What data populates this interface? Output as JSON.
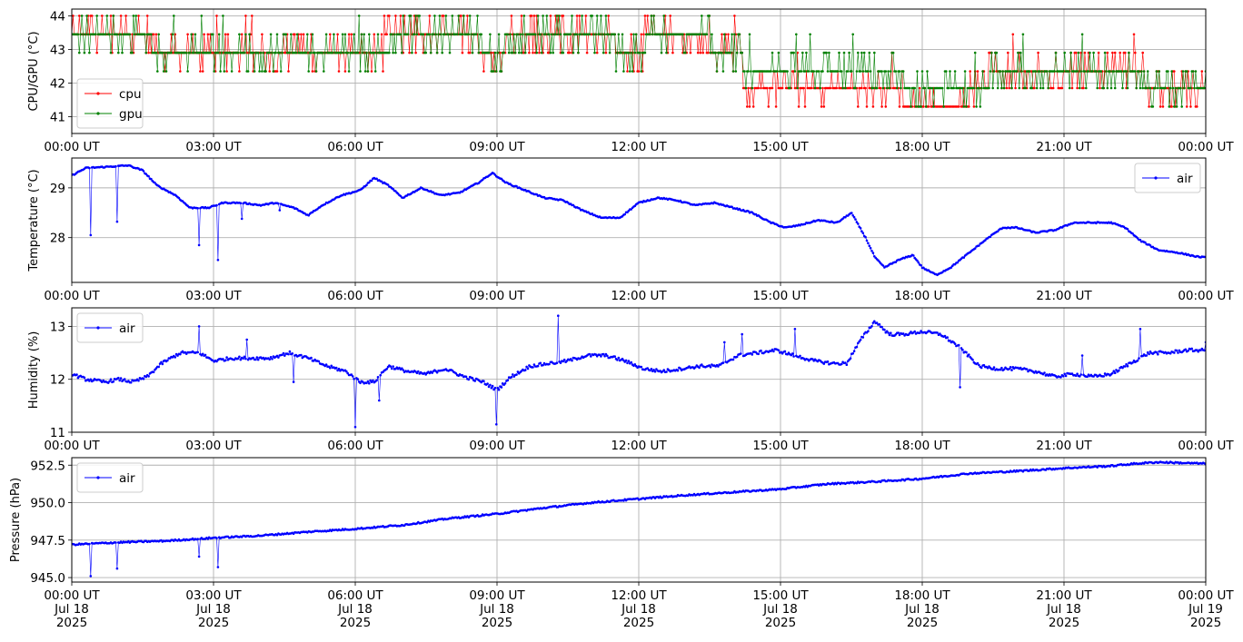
{
  "colors": {
    "cpu": "#ff0000",
    "gpu": "#008000",
    "air": "#0000ff",
    "grid": "#b0b0b0"
  },
  "chart_data": [
    {
      "type": "line",
      "id": "cpu_gpu",
      "ylabel": "CPU/GPU (°C)",
      "xlim": [
        0,
        24
      ],
      "ylim": [
        40.5,
        44.2
      ],
      "yticks": [
        41,
        42,
        43,
        44
      ],
      "ytick_labels": [
        "41",
        "42",
        "43",
        "44"
      ],
      "xtick_labels": [
        "00:00 UT",
        "03:00 UT",
        "06:00 UT",
        "09:00 UT",
        "12:00 UT",
        "15:00 UT",
        "18:00 UT",
        "21:00 UT",
        "00:00 UT"
      ],
      "grid": true,
      "legend": "bottom-left",
      "series": [
        {
          "name": "cpu",
          "color": "#ff0000",
          "levels": [
            41.3,
            41.85,
            42.35,
            42.9,
            43.45,
            44.0
          ],
          "x": [
            0,
            1.6,
            1.7,
            5.8,
            6.6,
            8.6,
            9.2,
            11.5,
            12.1,
            13.5,
            14.2,
            16.8,
            17.6,
            19.0,
            19.4,
            22.3,
            22.7,
            24
          ],
          "y": [
            43.45,
            43.45,
            42.9,
            42.9,
            43.45,
            42.9,
            43.45,
            42.9,
            43.45,
            42.9,
            41.85,
            41.85,
            41.3,
            41.85,
            42.35,
            42.35,
            41.85,
            41.85
          ]
        },
        {
          "name": "gpu",
          "color": "#008000",
          "levels": [
            41.3,
            41.85,
            42.35,
            42.9,
            43.45,
            44.0
          ],
          "x": [
            0,
            1.6,
            1.7,
            5.8,
            6.6,
            8.6,
            9.2,
            11.5,
            12.1,
            13.5,
            14.2,
            16.8,
            17.6,
            19.0,
            19.4,
            22.3,
            22.7,
            24
          ],
          "y": [
            43.45,
            43.45,
            42.9,
            42.9,
            43.45,
            42.9,
            43.45,
            42.9,
            43.45,
            42.9,
            42.35,
            42.35,
            41.85,
            41.85,
            42.35,
            42.35,
            41.85,
            41.85
          ]
        }
      ]
    },
    {
      "type": "line",
      "id": "temperature",
      "ylabel": "Temperature (°C)",
      "xlim": [
        0,
        24
      ],
      "ylim": [
        27.1,
        29.6
      ],
      "yticks": [
        28,
        29
      ],
      "ytick_labels": [
        "28",
        "29"
      ],
      "xtick_labels": [
        "00:00 UT",
        "03:00 UT",
        "06:00 UT",
        "09:00 UT",
        "12:00 UT",
        "15:00 UT",
        "18:00 UT",
        "21:00 UT",
        "00:00 UT"
      ],
      "grid": true,
      "legend": "top-right",
      "series": [
        {
          "name": "air",
          "color": "#0000ff",
          "x": [
            0,
            0.3,
            0.7,
            1.0,
            1.2,
            1.5,
            1.8,
            2.2,
            2.5,
            2.9,
            3.2,
            3.6,
            4.0,
            4.3,
            4.7,
            5.0,
            5.3,
            5.7,
            6.1,
            6.4,
            6.7,
            7.0,
            7.4,
            7.8,
            8.2,
            8.6,
            8.9,
            9.2,
            9.6,
            10.0,
            10.4,
            10.8,
            11.2,
            11.6,
            12.0,
            12.4,
            12.8,
            13.2,
            13.6,
            14.0,
            14.4,
            14.8,
            15.1,
            15.4,
            15.8,
            16.2,
            16.5,
            16.8,
            17.0,
            17.2,
            17.5,
            17.8,
            18.0,
            18.3,
            18.6,
            19.0,
            19.4,
            19.7,
            20.0,
            20.4,
            20.8,
            21.2,
            21.6,
            22.0,
            22.3,
            22.6,
            23.0,
            23.4,
            23.8,
            24
          ],
          "y": [
            29.25,
            29.4,
            29.42,
            29.44,
            29.45,
            29.35,
            29.05,
            28.85,
            28.6,
            28.6,
            28.7,
            28.7,
            28.65,
            28.7,
            28.6,
            28.45,
            28.65,
            28.85,
            28.95,
            29.2,
            29.05,
            28.8,
            29.0,
            28.85,
            28.9,
            29.1,
            29.3,
            29.1,
            28.95,
            28.8,
            28.75,
            28.55,
            28.4,
            28.4,
            28.7,
            28.8,
            28.75,
            28.65,
            28.7,
            28.6,
            28.5,
            28.3,
            28.2,
            28.25,
            28.35,
            28.3,
            28.5,
            28.0,
            27.6,
            27.4,
            27.55,
            27.65,
            27.4,
            27.25,
            27.4,
            27.7,
            28.0,
            28.2,
            28.2,
            28.1,
            28.15,
            28.3,
            28.3,
            28.3,
            28.2,
            27.95,
            27.75,
            27.7,
            27.62,
            27.6
          ]
        }
      ]
    },
    {
      "type": "line",
      "id": "humidity",
      "ylabel": "Humidity (%)",
      "xlim": [
        0,
        24
      ],
      "ylim": [
        11.0,
        13.35
      ],
      "yticks": [
        11,
        12,
        13
      ],
      "ytick_labels": [
        "11",
        "12",
        "13"
      ],
      "xtick_labels": [
        "00:00 UT",
        "03:00 UT",
        "06:00 UT",
        "09:00 UT",
        "12:00 UT",
        "15:00 UT",
        "18:00 UT",
        "21:00 UT",
        "00:00 UT"
      ],
      "grid": true,
      "legend": "top-left",
      "series": [
        {
          "name": "air",
          "color": "#0000ff",
          "x": [
            0,
            0.3,
            0.7,
            1.0,
            1.3,
            1.6,
            1.9,
            2.3,
            2.7,
            3.0,
            3.4,
            3.8,
            4.2,
            4.6,
            5.0,
            5.4,
            5.8,
            6.1,
            6.4,
            6.7,
            7.1,
            7.5,
            7.9,
            8.3,
            8.7,
            9.0,
            9.3,
            9.7,
            10.1,
            10.5,
            10.9,
            11.3,
            11.7,
            12.1,
            12.5,
            12.9,
            13.3,
            13.7,
            14.1,
            14.5,
            14.9,
            15.3,
            15.7,
            16.1,
            16.4,
            16.7,
            17.0,
            17.3,
            17.6,
            18.0,
            18.4,
            18.8,
            19.2,
            19.6,
            20.0,
            20.4,
            20.8,
            21.2,
            21.6,
            22.0,
            22.4,
            22.8,
            23.2,
            23.6,
            24
          ],
          "y": [
            12.1,
            12.0,
            11.95,
            12.0,
            11.95,
            12.05,
            12.3,
            12.5,
            12.5,
            12.35,
            12.4,
            12.4,
            12.4,
            12.5,
            12.4,
            12.25,
            12.15,
            11.95,
            11.95,
            12.25,
            12.15,
            12.1,
            12.2,
            12.05,
            11.95,
            11.8,
            12.05,
            12.25,
            12.3,
            12.35,
            12.45,
            12.45,
            12.35,
            12.2,
            12.15,
            12.2,
            12.25,
            12.25,
            12.45,
            12.5,
            12.55,
            12.45,
            12.35,
            12.3,
            12.3,
            12.75,
            13.1,
            12.85,
            12.85,
            12.9,
            12.85,
            12.6,
            12.25,
            12.2,
            12.2,
            12.15,
            12.05,
            12.1,
            12.05,
            12.1,
            12.3,
            12.5,
            12.5,
            12.55,
            12.55
          ]
        }
      ]
    },
    {
      "type": "line",
      "id": "pressure",
      "ylabel": "Pressure (hPa)",
      "xlim": [
        0,
        24
      ],
      "ylim": [
        944.7,
        953.0
      ],
      "yticks": [
        945.0,
        947.5,
        950.0,
        952.5
      ],
      "ytick_labels": [
        "945.0",
        "947.5",
        "950.0",
        "952.5"
      ],
      "xtick_labels": [
        "00:00 UT\nJul 18\n2025",
        "03:00 UT\nJul 18\n2025",
        "06:00 UT\nJul 18\n2025",
        "09:00 UT\nJul 18\n2025",
        "12:00 UT\nJul 18\n2025",
        "15:00 UT\nJul 18\n2025",
        "18:00 UT\nJul 18\n2025",
        "21:00 UT\nJul 18\n2025",
        "00:00 UT\nJul 19\n2025"
      ],
      "grid": true,
      "legend": "top-left",
      "series": [
        {
          "name": "air",
          "color": "#0000ff",
          "x": [
            0,
            1,
            2,
            3,
            4,
            5,
            6,
            7,
            8,
            9,
            10,
            11,
            12,
            13,
            14,
            15,
            16,
            17,
            18,
            19,
            20,
            21,
            22,
            22.5,
            23,
            24
          ],
          "y": [
            947.2,
            947.35,
            947.45,
            947.65,
            947.8,
            948.05,
            948.25,
            948.5,
            948.95,
            949.25,
            949.65,
            950.0,
            950.25,
            950.5,
            950.7,
            950.9,
            951.25,
            951.4,
            951.6,
            951.95,
            952.1,
            952.3,
            952.45,
            952.6,
            952.7,
            952.6
          ]
        }
      ]
    }
  ],
  "spikes": {
    "temperature": [
      [
        0.4,
        28.05
      ],
      [
        0.95,
        28.32
      ],
      [
        2.7,
        27.85
      ],
      [
        3.1,
        27.55
      ],
      [
        3.6,
        28.38
      ],
      [
        4.4,
        28.55
      ]
    ],
    "humidity": [
      [
        2.7,
        13.0
      ],
      [
        3.7,
        12.75
      ],
      [
        4.7,
        11.95
      ],
      [
        6.0,
        11.1
      ],
      [
        6.5,
        11.6
      ],
      [
        9.0,
        11.15
      ],
      [
        10.3,
        13.2
      ],
      [
        13.8,
        12.7
      ],
      [
        14.2,
        12.85
      ],
      [
        15.3,
        12.95
      ],
      [
        18.8,
        11.85
      ],
      [
        21.4,
        12.45
      ],
      [
        22.6,
        12.95
      ],
      [
        24.0,
        12.7
      ]
    ],
    "pressure": [
      [
        0.4,
        945.1
      ],
      [
        0.95,
        945.6
      ],
      [
        2.7,
        946.4
      ],
      [
        3.1,
        945.7
      ]
    ]
  }
}
